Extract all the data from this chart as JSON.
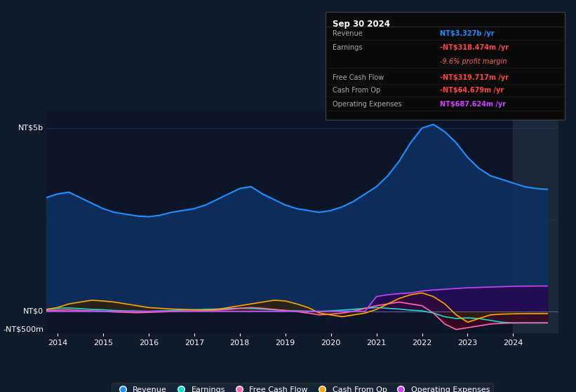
{
  "bg_color": "#0d1b2a",
  "plot_bg_color": "#0a1628",
  "grid_color": "#1e3a5f",
  "title_date": "Sep 30 2024",
  "ylabel_top": "NT$5b",
  "ylabel_zero": "NT$0",
  "ylabel_neg": "-NT$500m",
  "ylim_min": -600000000,
  "ylim_max": 5500000000,
  "info_rows": [
    {
      "label": "Revenue",
      "value": "NT$3.327b /yr",
      "vcolor": "#1e90ff",
      "sub": null,
      "scolor": null
    },
    {
      "label": "Earnings",
      "value": "-NT$318.474m /yr",
      "vcolor": "#ff4444",
      "sub": "-9.6% profit margin",
      "scolor": "#ff6666"
    },
    {
      "label": "Free Cash Flow",
      "value": "-NT$319.717m /yr",
      "vcolor": "#ff4444",
      "sub": null,
      "scolor": null
    },
    {
      "label": "Cash From Op",
      "value": "-NT$64.679m /yr",
      "vcolor": "#ff4444",
      "sub": null,
      "scolor": null
    },
    {
      "label": "Operating Expenses",
      "value": "NT$687.624m /yr",
      "vcolor": "#cc44ff",
      "sub": null,
      "scolor": null
    }
  ],
  "series": {
    "Revenue": {
      "color": "#1e90ff",
      "fill_color": "#0d3060",
      "alpha": 0.9,
      "years": [
        2013.75,
        2014.0,
        2014.25,
        2014.5,
        2014.75,
        2015.0,
        2015.25,
        2015.5,
        2015.75,
        2016.0,
        2016.25,
        2016.5,
        2016.75,
        2017.0,
        2017.25,
        2017.5,
        2017.75,
        2018.0,
        2018.25,
        2018.5,
        2018.75,
        2019.0,
        2019.25,
        2019.5,
        2019.75,
        2020.0,
        2020.25,
        2020.5,
        2020.75,
        2021.0,
        2021.25,
        2021.5,
        2021.75,
        2022.0,
        2022.25,
        2022.5,
        2022.75,
        2023.0,
        2023.25,
        2023.5,
        2023.75,
        2024.0,
        2024.25,
        2024.5,
        2024.75
      ],
      "values": [
        3100000000,
        3200000000,
        3250000000,
        3100000000,
        2950000000,
        2800000000,
        2700000000,
        2650000000,
        2600000000,
        2580000000,
        2620000000,
        2700000000,
        2750000000,
        2800000000,
        2900000000,
        3050000000,
        3200000000,
        3350000000,
        3400000000,
        3200000000,
        3050000000,
        2900000000,
        2800000000,
        2750000000,
        2700000000,
        2750000000,
        2850000000,
        3000000000,
        3200000000,
        3400000000,
        3700000000,
        4100000000,
        4600000000,
        5000000000,
        5100000000,
        4900000000,
        4600000000,
        4200000000,
        3900000000,
        3700000000,
        3600000000,
        3500000000,
        3400000000,
        3350000000,
        3327000000
      ]
    },
    "Earnings": {
      "color": "#00e5cc",
      "fill_color": "#003333",
      "alpha": 0.7,
      "years": [
        2013.75,
        2014.0,
        2014.25,
        2014.5,
        2014.75,
        2015.0,
        2015.25,
        2015.5,
        2015.75,
        2016.0,
        2016.25,
        2016.5,
        2016.75,
        2017.0,
        2017.25,
        2017.5,
        2017.75,
        2018.0,
        2018.25,
        2018.5,
        2018.75,
        2019.0,
        2019.25,
        2019.5,
        2019.75,
        2020.0,
        2020.25,
        2020.5,
        2020.75,
        2021.0,
        2021.25,
        2021.5,
        2021.75,
        2022.0,
        2022.25,
        2022.5,
        2022.75,
        2023.0,
        2023.25,
        2023.5,
        2023.75,
        2024.0,
        2024.25,
        2024.5,
        2024.75
      ],
      "values": [
        50000000,
        80000000,
        90000000,
        70000000,
        50000000,
        40000000,
        20000000,
        10000000,
        5000000,
        -5000000,
        10000000,
        20000000,
        30000000,
        40000000,
        50000000,
        60000000,
        70000000,
        80000000,
        75000000,
        60000000,
        40000000,
        20000000,
        10000000,
        0,
        -10000000,
        10000000,
        30000000,
        50000000,
        80000000,
        100000000,
        80000000,
        60000000,
        30000000,
        10000000,
        -50000000,
        -150000000,
        -200000000,
        -180000000,
        -200000000,
        -250000000,
        -300000000,
        -320000000,
        -318000000,
        -319000000,
        -318474000
      ]
    },
    "Free Cash Flow": {
      "color": "#ff69b4",
      "fill_color": "#4a0020",
      "alpha": 0.7,
      "years": [
        2013.75,
        2014.0,
        2014.25,
        2014.5,
        2014.75,
        2015.0,
        2015.25,
        2015.5,
        2015.75,
        2016.0,
        2016.25,
        2016.5,
        2016.75,
        2017.0,
        2017.25,
        2017.5,
        2017.75,
        2018.0,
        2018.25,
        2018.5,
        2018.75,
        2019.0,
        2019.25,
        2019.5,
        2019.75,
        2020.0,
        2020.25,
        2020.5,
        2020.75,
        2021.0,
        2021.25,
        2021.5,
        2021.75,
        2022.0,
        2022.25,
        2022.5,
        2022.75,
        2023.0,
        2023.25,
        2023.5,
        2023.75,
        2024.0,
        2024.25,
        2024.5,
        2024.75
      ],
      "values": [
        20000000,
        30000000,
        40000000,
        20000000,
        10000000,
        0,
        -20000000,
        -30000000,
        -40000000,
        -30000000,
        -20000000,
        -10000000,
        0,
        10000000,
        20000000,
        30000000,
        50000000,
        80000000,
        100000000,
        80000000,
        50000000,
        20000000,
        -10000000,
        -50000000,
        -100000000,
        -80000000,
        -50000000,
        0,
        80000000,
        150000000,
        200000000,
        250000000,
        200000000,
        150000000,
        -50000000,
        -350000000,
        -500000000,
        -450000000,
        -400000000,
        -350000000,
        -330000000,
        -320000000,
        -319000000,
        -319500000,
        -319717000
      ]
    },
    "Cash From Op": {
      "color": "#ffa500",
      "fill_color": "#3a2000",
      "alpha": 0.7,
      "years": [
        2013.75,
        2014.0,
        2014.25,
        2014.5,
        2014.75,
        2015.0,
        2015.25,
        2015.5,
        2015.75,
        2016.0,
        2016.25,
        2016.5,
        2016.75,
        2017.0,
        2017.25,
        2017.5,
        2017.75,
        2018.0,
        2018.25,
        2018.5,
        2018.75,
        2019.0,
        2019.25,
        2019.5,
        2019.75,
        2020.0,
        2020.25,
        2020.5,
        2020.75,
        2021.0,
        2021.25,
        2021.5,
        2021.75,
        2022.0,
        2022.25,
        2022.5,
        2022.75,
        2023.0,
        2023.25,
        2023.5,
        2023.75,
        2024.0,
        2024.25,
        2024.5,
        2024.75
      ],
      "values": [
        50000000,
        100000000,
        200000000,
        250000000,
        300000000,
        280000000,
        250000000,
        200000000,
        150000000,
        100000000,
        80000000,
        60000000,
        50000000,
        40000000,
        30000000,
        50000000,
        100000000,
        150000000,
        200000000,
        250000000,
        300000000,
        280000000,
        200000000,
        100000000,
        -50000000,
        -100000000,
        -150000000,
        -100000000,
        -50000000,
        50000000,
        200000000,
        350000000,
        450000000,
        500000000,
        400000000,
        200000000,
        -100000000,
        -300000000,
        -200000000,
        -100000000,
        -80000000,
        -70000000,
        -65000000,
        -64000000,
        -64679000
      ]
    },
    "Operating Expenses": {
      "color": "#cc44ff",
      "fill_color": "#2d0050",
      "alpha": 0.7,
      "years": [
        2013.75,
        2014.0,
        2014.25,
        2014.5,
        2014.75,
        2015.0,
        2015.25,
        2015.5,
        2015.75,
        2016.0,
        2016.25,
        2016.5,
        2016.75,
        2017.0,
        2017.25,
        2017.5,
        2017.75,
        2018.0,
        2018.25,
        2018.5,
        2018.75,
        2019.0,
        2019.25,
        2019.5,
        2019.75,
        2020.0,
        2020.25,
        2020.5,
        2020.75,
        2021.0,
        2021.25,
        2021.5,
        2021.75,
        2022.0,
        2022.25,
        2022.5,
        2022.75,
        2023.0,
        2023.25,
        2023.5,
        2023.75,
        2024.0,
        2024.25,
        2024.5,
        2024.75
      ],
      "values": [
        0,
        0,
        0,
        0,
        0,
        0,
        0,
        0,
        0,
        0,
        0,
        0,
        0,
        0,
        0,
        0,
        0,
        0,
        0,
        0,
        0,
        0,
        0,
        0,
        0,
        0,
        0,
        0,
        0,
        400000000,
        450000000,
        480000000,
        500000000,
        550000000,
        580000000,
        600000000,
        620000000,
        640000000,
        650000000,
        660000000,
        670000000,
        680000000,
        685000000,
        687000000,
        687624000
      ]
    }
  },
  "legend": [
    {
      "label": "Revenue",
      "color": "#1e90ff"
    },
    {
      "label": "Earnings",
      "color": "#00e5cc"
    },
    {
      "label": "Free Cash Flow",
      "color": "#ff69b4"
    },
    {
      "label": "Cash From Op",
      "color": "#ffa500"
    },
    {
      "label": "Operating Expenses",
      "color": "#cc44ff"
    }
  ],
  "xticks": [
    2014,
    2015,
    2016,
    2017,
    2018,
    2019,
    2020,
    2021,
    2022,
    2023,
    2024
  ],
  "shaded_region_start": 2024.0,
  "xlim_min": 2013.75,
  "xlim_max": 2025.0
}
